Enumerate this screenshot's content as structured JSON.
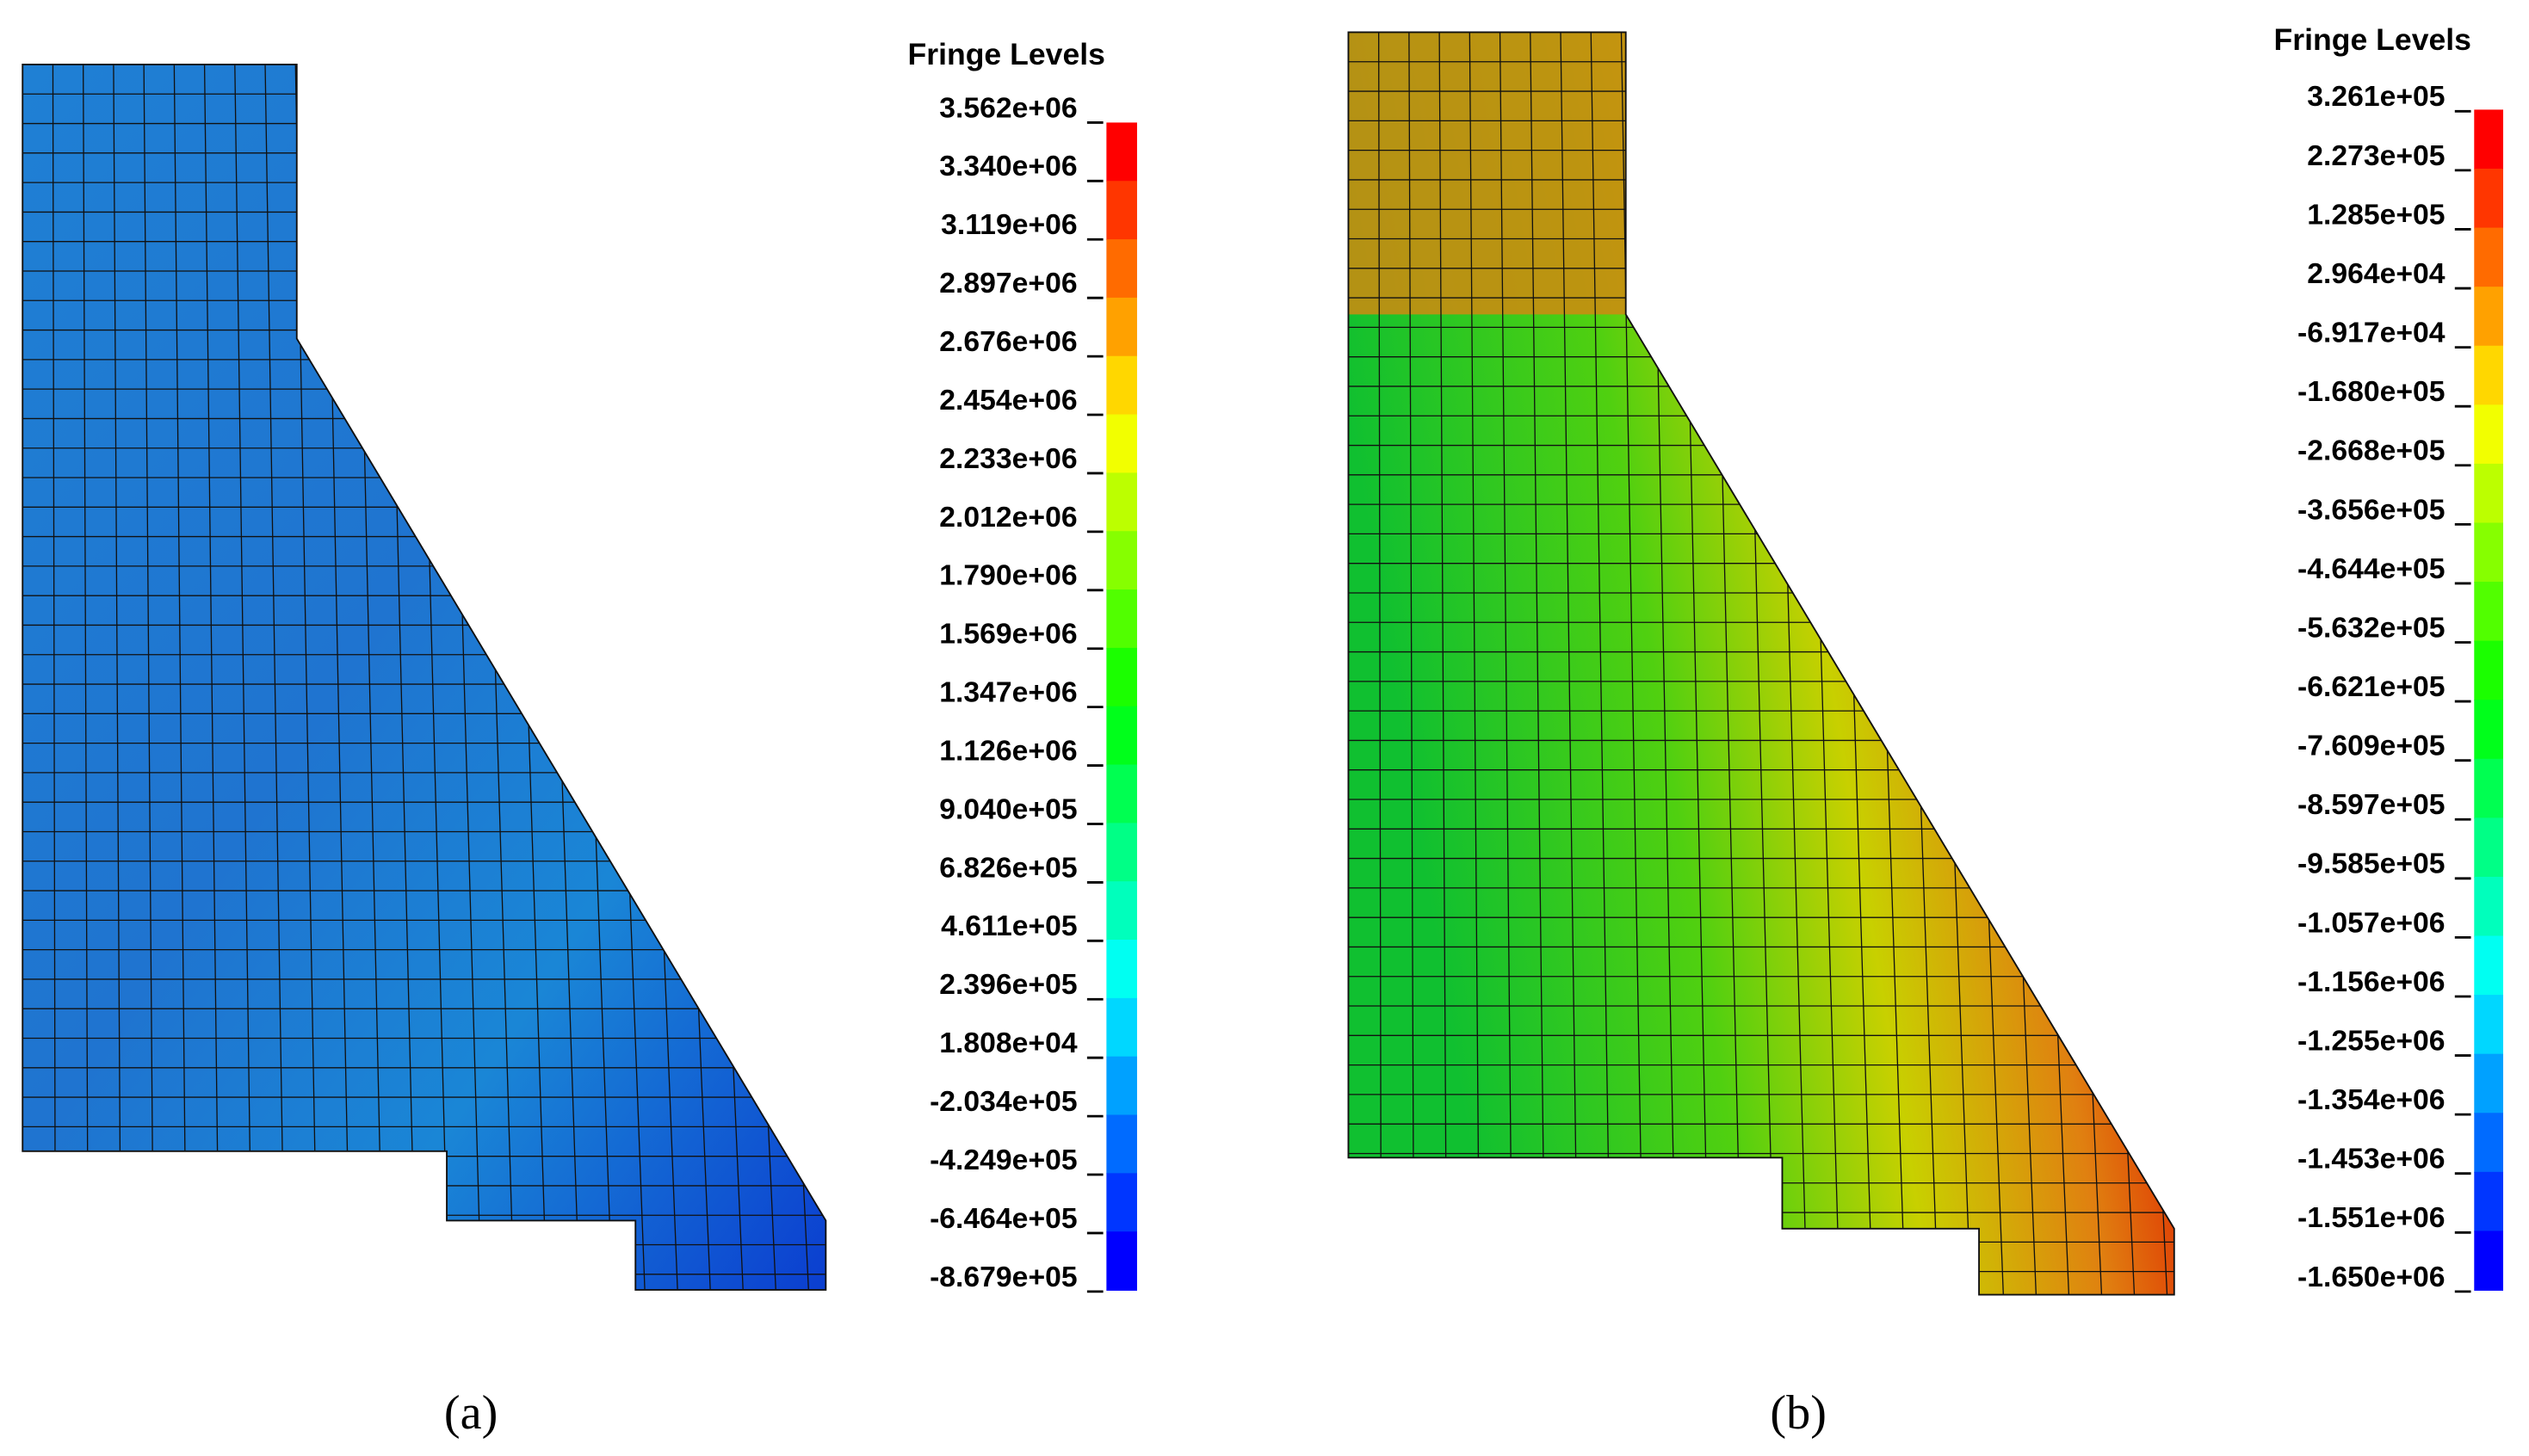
{
  "panels": [
    {
      "legend_title": "Fringe Levels",
      "levels": [
        "3.562e+06",
        "3.340e+06",
        "3.119e+06",
        "2.897e+06",
        "2.676e+06",
        "2.454e+06",
        "2.233e+06",
        "2.012e+06",
        "1.790e+06",
        "1.569e+06",
        "1.347e+06",
        "1.126e+06",
        "9.040e+05",
        "6.826e+05",
        "4.611e+05",
        "2.396e+05",
        "1.808e+04",
        "-2.034e+05",
        "-4.249e+05",
        "-6.464e+05",
        "-8.679e+05"
      ],
      "caption": "(a)"
    },
    {
      "legend_title": "Fringe Levels",
      "levels": [
        "3.261e+05",
        "2.273e+05",
        "1.285e+05",
        "2.964e+04",
        "-6.917e+04",
        "-1.680e+05",
        "-2.668e+05",
        "-3.656e+05",
        "-4.644e+05",
        "-5.632e+05",
        "-6.621e+05",
        "-7.609e+05",
        "-8.597e+05",
        "-9.585e+05",
        "-1.057e+06",
        "-1.156e+06",
        "-1.255e+06",
        "-1.354e+06",
        "-1.453e+06",
        "-1.551e+06",
        "-1.650e+06"
      ],
      "caption": "(b)"
    }
  ]
}
